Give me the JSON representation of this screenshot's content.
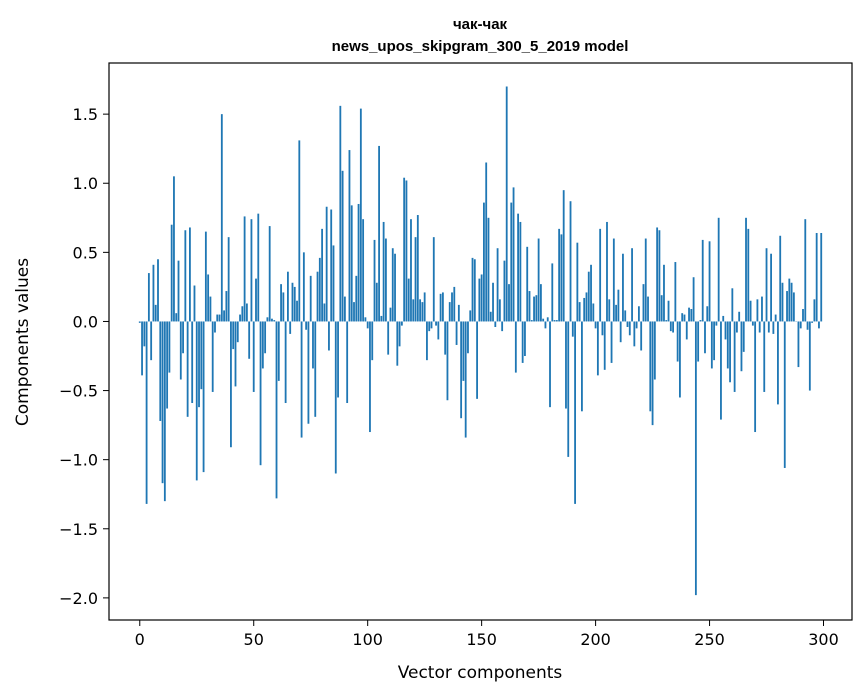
{
  "chart_data": {
    "type": "bar",
    "title": "чак-чак",
    "subtitle": "news_upos_skipgram_300_5_2019 model",
    "xlabel": "Vector components",
    "ylabel": "Components values",
    "xlim": [
      -13.5,
      312.5
    ],
    "ylim": [
      -2.16,
      1.87
    ],
    "xticks": [
      0,
      50,
      100,
      150,
      200,
      250,
      300
    ],
    "yticks": [
      -2.0,
      -1.5,
      -1.0,
      -0.5,
      0.0,
      0.5,
      1.0,
      1.5
    ],
    "ytick_labels": [
      "−2.0",
      "−1.5",
      "−1.0",
      "−0.5",
      "0.0",
      "0.5",
      "1.0",
      "1.5"
    ],
    "bar_color": "#1f77b4",
    "values": [
      -0.01,
      -0.39,
      -0.18,
      -1.32,
      0.35,
      -0.28,
      0.41,
      0.12,
      0.45,
      -0.72,
      -1.17,
      -1.3,
      -0.63,
      -0.37,
      0.7,
      1.05,
      0.06,
      0.44,
      -0.42,
      -0.23,
      0.66,
      -0.69,
      0.68,
      -0.59,
      0.26,
      -1.15,
      -0.62,
      -0.49,
      -1.09,
      0.65,
      0.34,
      0.18,
      -0.51,
      -0.08,
      0.05,
      0.05,
      1.5,
      0.08,
      0.22,
      0.61,
      -0.91,
      -0.2,
      -0.47,
      -0.15,
      0.05,
      0.11,
      0.76,
      0.13,
      -0.27,
      0.74,
      -0.51,
      0.31,
      0.78,
      -1.04,
      -0.34,
      -0.23,
      0.03,
      0.69,
      0.02,
      0.01,
      -1.28,
      -0.43,
      0.27,
      0.21,
      -0.59,
      0.36,
      -0.09,
      0.28,
      0.25,
      0.15,
      1.31,
      -0.84,
      0.5,
      -0.06,
      -0.74,
      0.33,
      -0.34,
      -0.69,
      0.36,
      0.46,
      0.67,
      0.13,
      0.83,
      -0.21,
      0.81,
      0.55,
      -1.1,
      -0.55,
      1.56,
      1.09,
      0.18,
      -0.59,
      1.24,
      0.84,
      0.14,
      0.33,
      0.85,
      1.54,
      0.74,
      0.03,
      -0.05,
      -0.8,
      -0.28,
      0.59,
      0.28,
      1.27,
      0.04,
      0.72,
      0.6,
      -0.24,
      0.1,
      0.53,
      0.49,
      -0.32,
      -0.18,
      -0.03,
      1.04,
      1.02,
      0.31,
      0.74,
      0.16,
      0.61,
      0.77,
      0.16,
      0.14,
      0.21,
      -0.28,
      -0.07,
      -0.05,
      0.61,
      -0.03,
      -0.13,
      0.2,
      0.21,
      -0.24,
      -0.57,
      0.14,
      0.21,
      0.25,
      -0.17,
      0.12,
      -0.7,
      -0.43,
      -0.84,
      -0.23,
      0.08,
      0.46,
      0.45,
      -0.56,
      0.31,
      0.34,
      0.86,
      1.15,
      0.75,
      0.07,
      0.28,
      -0.04,
      0.53,
      0.16,
      -0.07,
      0.44,
      1.7,
      0.27,
      0.86,
      0.97,
      -0.37,
      0.78,
      0.72,
      -0.3,
      -0.25,
      0.54,
      0.22,
      0.01,
      0.18,
      0.19,
      0.6,
      0.27,
      0.02,
      -0.05,
      0.03,
      -0.62,
      0.42,
      0.01,
      0.01,
      0.67,
      0.63,
      0.95,
      -0.63,
      -0.98,
      0.87,
      -0.11,
      -1.32,
      0.57,
      0.14,
      -0.65,
      0.17,
      0.21,
      0.36,
      0.41,
      0.13,
      -0.05,
      -0.39,
      0.67,
      -0.1,
      -0.35,
      0.72,
      0.16,
      -0.3,
      0.6,
      0.12,
      0.23,
      -0.15,
      0.49,
      0.08,
      -0.04,
      -0.1,
      0.53,
      -0.18,
      -0.05,
      0.11,
      -0.21,
      0.27,
      0.6,
      0.18,
      -0.65,
      -0.75,
      -0.42,
      0.68,
      0.66,
      0.19,
      0.41,
      0.01,
      0.15,
      -0.07,
      -0.08,
      0.43,
      -0.29,
      -0.55,
      0.06,
      0.05,
      -0.13,
      0.1,
      0.09,
      0.32,
      -1.98,
      -0.29,
      0.01,
      0.59,
      -0.23,
      0.11,
      0.58,
      -0.34,
      -0.28,
      -0.03,
      0.75,
      -0.71,
      0.04,
      -0.13,
      -0.34,
      -0.44,
      0.24,
      -0.51,
      -0.08,
      0.07,
      -0.36,
      -0.22,
      0.75,
      0.67,
      0.15,
      -0.03,
      -0.8,
      0.16,
      -0.08,
      0.18,
      -0.51,
      0.53,
      -0.08,
      0.49,
      -0.09,
      0.05,
      -0.6,
      0.62,
      0.28,
      -1.06,
      0.22,
      0.31,
      0.28,
      0.21,
      0.0,
      -0.33,
      -0.05,
      0.09,
      0.74,
      -0.06,
      -0.5,
      -0.01,
      0.16,
      0.64,
      -0.05,
      0.64
    ]
  }
}
